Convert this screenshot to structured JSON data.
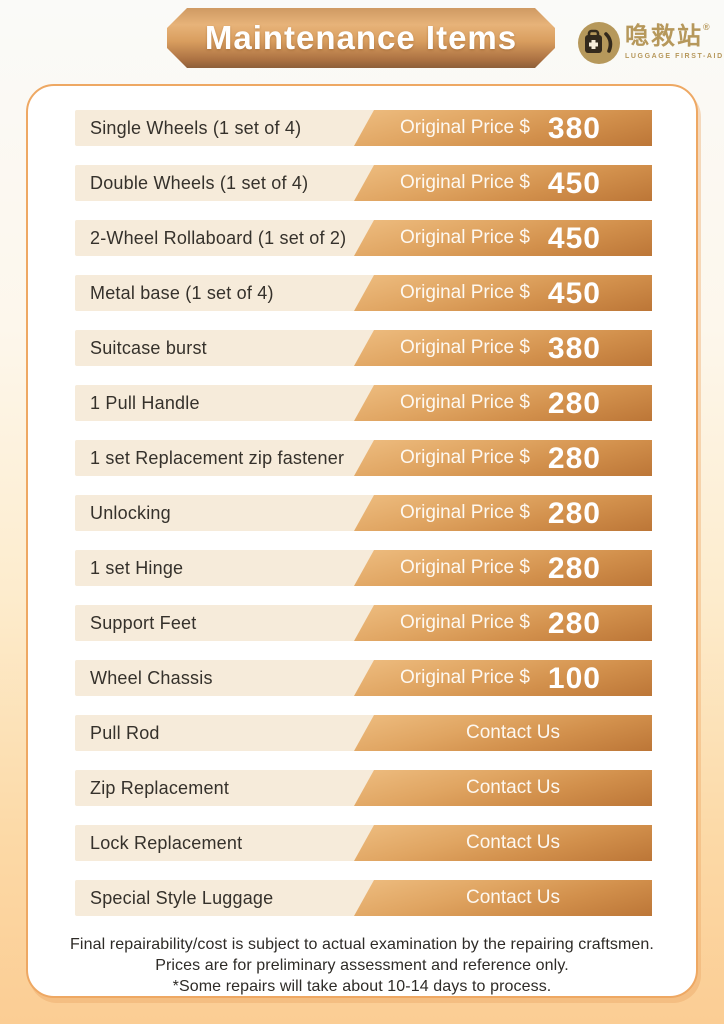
{
  "header": {
    "title": "Maintenance Items",
    "logo": {
      "brand_cn": "喼救站",
      "registered_mark": "®",
      "brand_en": "LUGGAGE FIRST-AID"
    }
  },
  "price_label": "Original Price $",
  "contact_label": "Contact Us",
  "items": [
    {
      "name": "Single Wheels (1 set of 4)",
      "price": "380"
    },
    {
      "name": "Double Wheels (1 set of 4)",
      "price": "450"
    },
    {
      "name": "2-Wheel Rollaboard (1 set of 2)",
      "price": "450"
    },
    {
      "name": "Metal base (1 set of 4)",
      "price": "450"
    },
    {
      "name": "Suitcase burst",
      "price": "380"
    },
    {
      "name": "1 Pull Handle",
      "price": "280"
    },
    {
      "name": "1 set Replacement zip fastener",
      "price": "280"
    },
    {
      "name": "Unlocking",
      "price": "280"
    },
    {
      "name": "1 set Hinge",
      "price": "280"
    },
    {
      "name": "Support Feet",
      "price": "280"
    },
    {
      "name": "Wheel Chassis",
      "price": "100"
    },
    {
      "name": "Pull Rod",
      "price": null
    },
    {
      "name": "Zip Replacement",
      "price": null
    },
    {
      "name": "Lock Replacement",
      "price": null
    },
    {
      "name": "Special Style Luggage",
      "price": null
    }
  ],
  "footer": {
    "lines": [
      "Final repairability/cost is subject to actual examination by the repairing craftsmen.",
      "Prices are for preliminary assessment and reference only.",
      "*Some repairs will take about 10-14 days to process."
    ]
  },
  "colors": {
    "banner_gold_light": "#e7b379",
    "banner_gold_dark": "#8d5f3a",
    "ribbon_light": "#eebd80",
    "ribbon_dark": "#bc7637",
    "row_cream": "#f6ebda",
    "card_border": "#eea863",
    "background_bottom": "#fbcd94",
    "logo_gold": "#b6985b",
    "text_dark": "#35312b"
  }
}
